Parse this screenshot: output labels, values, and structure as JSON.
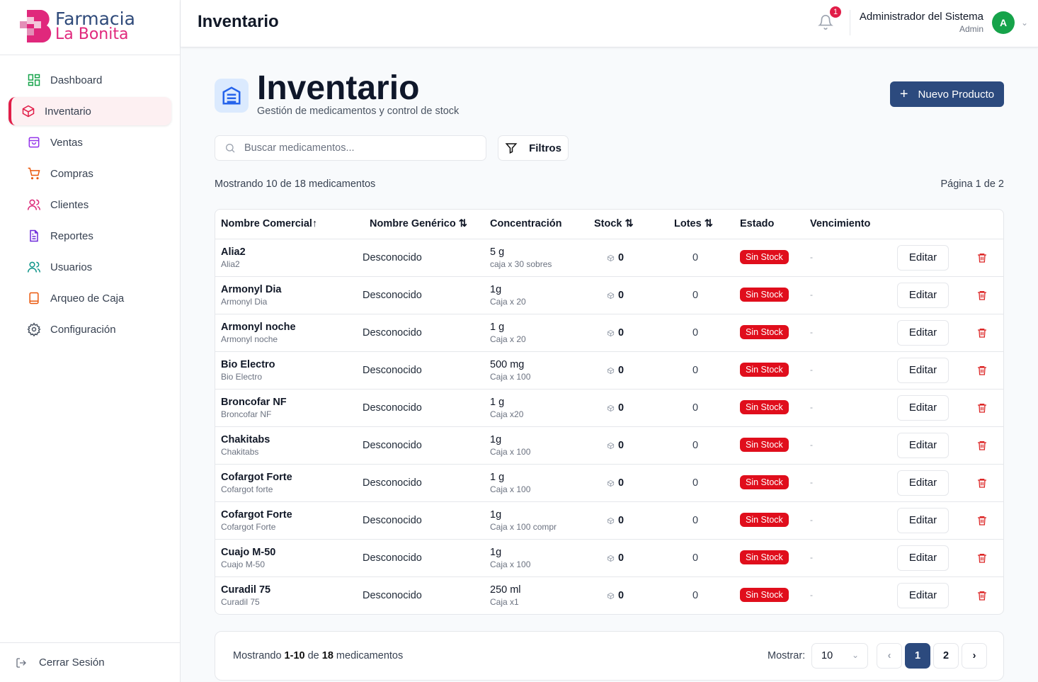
{
  "brand": {
    "line1": "Farmacia",
    "line2": "La Bonita"
  },
  "sidebar": {
    "items": [
      {
        "label": "Dashboard",
        "icon": "dashboard-icon",
        "color": "#16a34a"
      },
      {
        "label": "Inventario",
        "icon": "box-icon",
        "color": "#e11d48",
        "active": true
      },
      {
        "label": "Ventas",
        "icon": "shopping-bag-icon",
        "color": "#9333ea"
      },
      {
        "label": "Compras",
        "icon": "cart-icon",
        "color": "#ea580c"
      },
      {
        "label": "Clientes",
        "icon": "users-icon",
        "color": "#db2777"
      },
      {
        "label": "Reportes",
        "icon": "file-icon",
        "color": "#6d28d9"
      },
      {
        "label": "Usuarios",
        "icon": "user-icon",
        "color": "#0d9488"
      },
      {
        "label": "Arqueo de Caja",
        "icon": "book-icon",
        "color": "#ea580c"
      },
      {
        "label": "Configuración",
        "icon": "gear-icon",
        "color": "#4b5563"
      }
    ],
    "logout": "Cerrar Sesión"
  },
  "header": {
    "title": "Inventario",
    "notifications": "1",
    "user_name": "Administrador del Sistema",
    "user_role": "Admin",
    "avatar": "A"
  },
  "page": {
    "title": "Inventario",
    "subtitle": "Gestión de medicamentos y control de stock",
    "new_button": "Nuevo Producto",
    "search_placeholder": "Buscar medicamentos...",
    "filters": "Filtros",
    "showing": "Mostrando 10 de 18 medicamentos",
    "page_info": "Página 1 de 2"
  },
  "table": {
    "headers": [
      "Nombre Comercial↑",
      "Nombre Genérico ⇅",
      "Concentración",
      "Stock ⇅",
      "Lotes ⇅",
      "Estado",
      "Vencimiento"
    ],
    "edit_label": "Editar",
    "rows": [
      {
        "name": "Alia2",
        "sub": "Alia2",
        "generic": "Desconocido",
        "conc": "5 g",
        "pres": "caja x 30 sobres",
        "stock": "0",
        "lotes": "0",
        "estado": "Sin Stock",
        "venc": "-"
      },
      {
        "name": "Armonyl Dia",
        "sub": "Armonyl Dia",
        "generic": "Desconocido",
        "conc": "1g",
        "pres": "Caja x 20",
        "stock": "0",
        "lotes": "0",
        "estado": "Sin Stock",
        "venc": "-"
      },
      {
        "name": "Armonyl noche",
        "sub": "Armonyl noche",
        "generic": "Desconocido",
        "conc": "1 g",
        "pres": "Caja x 20",
        "stock": "0",
        "lotes": "0",
        "estado": "Sin Stock",
        "venc": "-"
      },
      {
        "name": "Bio Electro",
        "sub": "Bio Electro",
        "generic": "Desconocido",
        "conc": "500 mg",
        "pres": "Caja x 100",
        "stock": "0",
        "lotes": "0",
        "estado": "Sin Stock",
        "venc": "-"
      },
      {
        "name": "Broncofar NF",
        "sub": "Broncofar NF",
        "generic": "Desconocido",
        "conc": "1 g",
        "pres": "Caja x20",
        "stock": "0",
        "lotes": "0",
        "estado": "Sin Stock",
        "venc": "-"
      },
      {
        "name": "Chakitabs",
        "sub": "Chakitabs",
        "generic": "Desconocido",
        "conc": "1g",
        "pres": "Caja x 100",
        "stock": "0",
        "lotes": "0",
        "estado": "Sin Stock",
        "venc": "-"
      },
      {
        "name": "Cofargot Forte",
        "sub": "Cofargot forte",
        "generic": "Desconocido",
        "conc": "1 g",
        "pres": "Caja x 100",
        "stock": "0",
        "lotes": "0",
        "estado": "Sin Stock",
        "venc": "-"
      },
      {
        "name": "Cofargot Forte",
        "sub": "Cofargot Forte",
        "generic": "Desconocido",
        "conc": "1g",
        "pres": "Caja x 100 compr",
        "stock": "0",
        "lotes": "0",
        "estado": "Sin Stock",
        "venc": "-"
      },
      {
        "name": "Cuajo M-50",
        "sub": "Cuajo M-50",
        "generic": "Desconocido",
        "conc": "1g",
        "pres": "Caja x 100",
        "stock": "0",
        "lotes": "0",
        "estado": "Sin Stock",
        "venc": "-"
      },
      {
        "name": "Curadil 75",
        "sub": "Curadil 75",
        "generic": "Desconocido",
        "conc": "250 ml",
        "pres": "Caja x1",
        "stock": "0",
        "lotes": "0",
        "estado": "Sin Stock",
        "venc": "-"
      }
    ]
  },
  "footer": {
    "pre": "Mostrando ",
    "range": "1-10",
    "mid": " de ",
    "total": "18",
    "post": " medicamentos",
    "show_label": "Mostrar:",
    "page_size": "10",
    "pages": [
      "1",
      "2"
    ],
    "current_page": "1"
  }
}
